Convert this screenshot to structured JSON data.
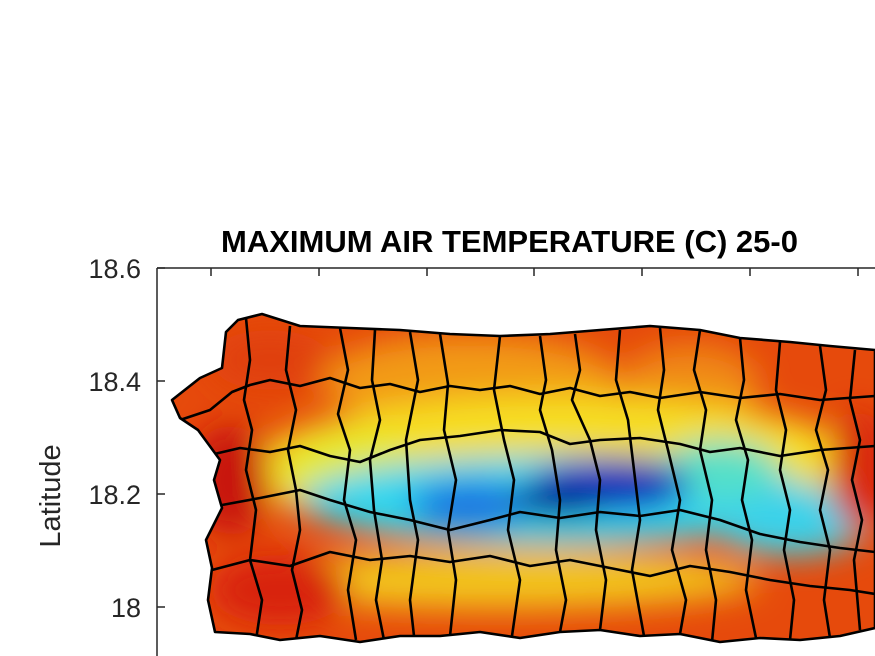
{
  "figure": {
    "title": "MAXIMUM AIR TEMPERATURE (C) 25-0",
    "ylabel": "Latitude",
    "yticks": [
      "18.6",
      "18.4",
      "18.2",
      "18"
    ]
  },
  "chart_data": {
    "type": "heatmap",
    "title": "MAXIMUM AIR TEMPERATURE (C) 25-0",
    "xlabel": "",
    "ylabel": "Latitude",
    "ylim": [
      17.94,
      18.6
    ],
    "yticks": [
      18.6,
      18.4,
      18.2,
      18
    ],
    "grid": false,
    "colormap": "jet",
    "region": "Puerto Rico",
    "overlay": "municipality boundaries",
    "colors": {
      "hot": "#d01a08",
      "warm": "#f27a10",
      "mild": "#f6e020",
      "cool": "#2ed6ec",
      "cold": "#0010a0"
    }
  }
}
